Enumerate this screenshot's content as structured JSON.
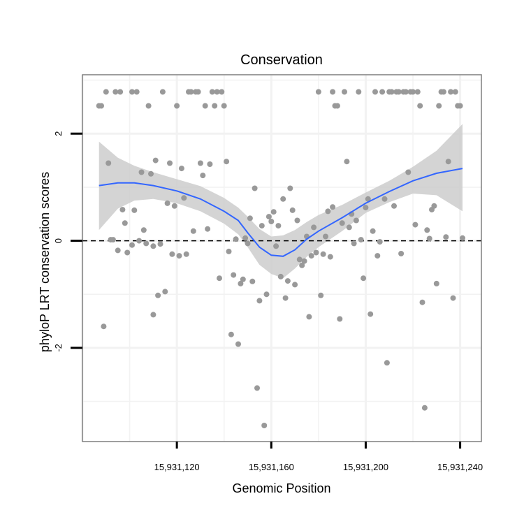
{
  "chart_data": {
    "type": "scatter",
    "title": "Conservation",
    "xlabel": "Genomic Position",
    "ylabel": "phyloP LRT conservation scores",
    "xlim": [
      15931080,
      15931249
    ],
    "ylim": [
      -3.75,
      3.1
    ],
    "x_ticks": [
      15931120,
      15931160,
      15931200,
      15931240
    ],
    "x_tick_labels": [
      "15,931,120",
      "15,931,160",
      "15,931,200",
      "15,931,240"
    ],
    "y_ticks": [
      -2,
      0,
      2
    ],
    "y_tick_labels": [
      "-2",
      "0",
      "2"
    ],
    "reference_line": {
      "y": 0,
      "style": "dashed",
      "color": "#000000"
    },
    "colors": {
      "points": "#999999",
      "smooth_line": "#3366ff",
      "ribbon": "#cccccc",
      "grid": "#f2f2f2",
      "panel_border": "#7f7f7f"
    },
    "points": [
      [
        15931087,
        2.52
      ],
      [
        15931088,
        2.52
      ],
      [
        15931089,
        -1.6
      ],
      [
        15931090,
        2.78
      ],
      [
        15931091,
        1.45
      ],
      [
        15931092,
        0.02
      ],
      [
        15931093,
        0.02
      ],
      [
        15931094,
        2.78
      ],
      [
        15931095,
        -0.18
      ],
      [
        15931096,
        2.78
      ],
      [
        15931097,
        0.58
      ],
      [
        15931098,
        0.33
      ],
      [
        15931099,
        -0.22
      ],
      [
        15931101,
        2.78
      ],
      [
        15931101,
        -0.08
      ],
      [
        15931102,
        0.57
      ],
      [
        15931103,
        2.78
      ],
      [
        15931104,
        0.0
      ],
      [
        15931105,
        1.28
      ],
      [
        15931106,
        0.2
      ],
      [
        15931107,
        -0.05
      ],
      [
        15931108,
        2.52
      ],
      [
        15931109,
        1.25
      ],
      [
        15931110,
        -1.38
      ],
      [
        15931110,
        -0.1
      ],
      [
        15931111,
        1.5
      ],
      [
        15931112,
        -1.02
      ],
      [
        15931113,
        -0.06
      ],
      [
        15931114,
        2.78
      ],
      [
        15931115,
        -0.95
      ],
      [
        15931116,
        0.7
      ],
      [
        15931117,
        1.45
      ],
      [
        15931118,
        -0.25
      ],
      [
        15931119,
        0.65
      ],
      [
        15931120,
        2.52
      ],
      [
        15931121,
        -0.28
      ],
      [
        15931122,
        1.35
      ],
      [
        15931123,
        0.8
      ],
      [
        15931124,
        -0.25
      ],
      [
        15931125,
        2.78
      ],
      [
        15931126,
        2.78
      ],
      [
        15931127,
        0.18
      ],
      [
        15931128,
        2.78
      ],
      [
        15931129,
        2.78
      ],
      [
        15931130,
        1.45
      ],
      [
        15931131,
        1.22
      ],
      [
        15931132,
        2.52
      ],
      [
        15931133,
        0.22
      ],
      [
        15931134,
        1.43
      ],
      [
        15931135,
        2.78
      ],
      [
        15931136,
        2.52
      ],
      [
        15931137,
        2.78
      ],
      [
        15931138,
        -0.7
      ],
      [
        15931139,
        2.78
      ],
      [
        15931140,
        2.52
      ],
      [
        15931141,
        1.48
      ],
      [
        15931142,
        -0.2
      ],
      [
        15931143,
        -1.75
      ],
      [
        15931144,
        -0.64
      ],
      [
        15931145,
        0.03
      ],
      [
        15931146,
        -1.93
      ],
      [
        15931147,
        -0.8
      ],
      [
        15931148,
        -0.72
      ],
      [
        15931149,
        0.05
      ],
      [
        15931150,
        -0.05
      ],
      [
        15931151,
        0.42
      ],
      [
        15931152,
        -0.76
      ],
      [
        15931153,
        0.98
      ],
      [
        15931154,
        -2.75
      ],
      [
        15931155,
        -1.12
      ],
      [
        15931156,
        0.28
      ],
      [
        15931157,
        -3.45
      ],
      [
        15931158,
        -1.0
      ],
      [
        15931159,
        0.45
      ],
      [
        15931160,
        0.36
      ],
      [
        15931161,
        0.54
      ],
      [
        15931162,
        -0.1
      ],
      [
        15931163,
        0.28
      ],
      [
        15931164,
        -0.67
      ],
      [
        15931165,
        0.78
      ],
      [
        15931166,
        -1.07
      ],
      [
        15931167,
        -0.75
      ],
      [
        15931168,
        0.98
      ],
      [
        15931169,
        0.57
      ],
      [
        15931170,
        -0.82
      ],
      [
        15931171,
        0.38
      ],
      [
        15931172,
        -0.35
      ],
      [
        15931173,
        -0.46
      ],
      [
        15931174,
        -0.38
      ],
      [
        15931175,
        0.08
      ],
      [
        15931176,
        -1.42
      ],
      [
        15931177,
        -0.28
      ],
      [
        15931178,
        0.25
      ],
      [
        15931179,
        -0.22
      ],
      [
        15931180,
        2.78
      ],
      [
        15931181,
        -1.02
      ],
      [
        15931182,
        -0.25
      ],
      [
        15931183,
        0.08
      ],
      [
        15931184,
        0.55
      ],
      [
        15931185,
        -0.3
      ],
      [
        15931186,
        2.78
      ],
      [
        15931186,
        0.63
      ],
      [
        15931187,
        2.52
      ],
      [
        15931188,
        2.52
      ],
      [
        15931189,
        -1.46
      ],
      [
        15931190,
        0.33
      ],
      [
        15931191,
        2.78
      ],
      [
        15931192,
        1.48
      ],
      [
        15931193,
        0.25
      ],
      [
        15931194,
        0.5
      ],
      [
        15931195,
        -0.05
      ],
      [
        15931196,
        0.38
      ],
      [
        15931197,
        2.78
      ],
      [
        15931198,
        0.02
      ],
      [
        15931199,
        -0.7
      ],
      [
        15931200,
        0.62
      ],
      [
        15931201,
        0.78
      ],
      [
        15931202,
        -1.37
      ],
      [
        15931203,
        0.18
      ],
      [
        15931204,
        2.78
      ],
      [
        15931205,
        -0.28
      ],
      [
        15931206,
        -0.02
      ],
      [
        15931207,
        2.78
      ],
      [
        15931208,
        0.78
      ],
      [
        15931209,
        -2.28
      ],
      [
        15931210,
        2.78
      ],
      [
        15931211,
        2.78
      ],
      [
        15931212,
        0.65
      ],
      [
        15931213,
        2.78
      ],
      [
        15931214,
        2.78
      ],
      [
        15931215,
        -0.24
      ],
      [
        15931216,
        2.78
      ],
      [
        15931217,
        2.78
      ],
      [
        15931218,
        1.28
      ],
      [
        15931219,
        2.78
      ],
      [
        15931220,
        2.78
      ],
      [
        15931221,
        0.3
      ],
      [
        15931222,
        2.78
      ],
      [
        15931223,
        2.52
      ],
      [
        15931224,
        -1.15
      ],
      [
        15931225,
        -3.12
      ],
      [
        15931226,
        0.2
      ],
      [
        15931227,
        0.04
      ],
      [
        15931228,
        0.58
      ],
      [
        15931229,
        0.65
      ],
      [
        15931230,
        -0.8
      ],
      [
        15931231,
        2.52
      ],
      [
        15931232,
        2.78
      ],
      [
        15931233,
        2.78
      ],
      [
        15931234,
        0.07
      ],
      [
        15931235,
        1.48
      ],
      [
        15931236,
        2.78
      ],
      [
        15931237,
        -1.07
      ],
      [
        15931238,
        2.78
      ],
      [
        15931239,
        2.52
      ],
      [
        15931240,
        2.52
      ],
      [
        15931241,
        0.05
      ]
    ],
    "smooth_fit": {
      "x": [
        15931087,
        15931095,
        15931102,
        15931110,
        15931120,
        15931130,
        15931140,
        15931146,
        15931150,
        15931155,
        15931160,
        15931165,
        15931170,
        15931175,
        15931180,
        15931190,
        15931200,
        15931210,
        15931220,
        15931230,
        15931241
      ],
      "y": [
        1.03,
        1.08,
        1.08,
        1.03,
        0.93,
        0.78,
        0.55,
        0.38,
        0.15,
        -0.12,
        -0.27,
        -0.29,
        -0.17,
        0.03,
        0.18,
        0.43,
        0.7,
        0.92,
        1.12,
        1.26,
        1.35
      ],
      "lower": [
        0.2,
        0.6,
        0.75,
        0.78,
        0.7,
        0.55,
        0.32,
        0.12,
        -0.12,
        -0.45,
        -0.62,
        -0.7,
        -0.52,
        -0.3,
        -0.12,
        0.18,
        0.52,
        0.72,
        0.88,
        0.85,
        0.55
      ],
      "upper": [
        1.85,
        1.55,
        1.4,
        1.28,
        1.15,
        1.02,
        0.8,
        0.62,
        0.45,
        0.22,
        0.08,
        0.1,
        0.2,
        0.35,
        0.48,
        0.67,
        0.9,
        1.12,
        1.38,
        1.68,
        2.18
      ]
    }
  }
}
